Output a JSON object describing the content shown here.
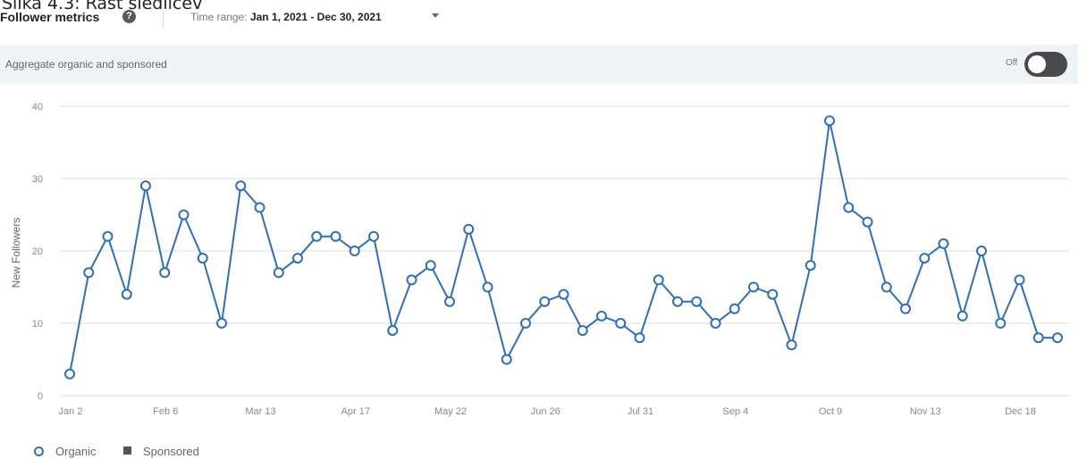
{
  "caption": "Slika 4.3: Rast sledilcev",
  "header": {
    "title": "Follower metrics",
    "time_range_label": "Time range:",
    "time_range_value": "Jan 1, 2021 - Dec 30, 2021"
  },
  "aggregate": {
    "label": "Aggregate organic and sponsored",
    "toggle_state": "Off"
  },
  "colors": {
    "series": "#2e6fbd",
    "grid": "#dddddd",
    "band": "#eef3f8",
    "toggle": "#4a4a4a"
  },
  "icons": {
    "help": "question-circle-icon",
    "dropdown": "chevron-down-icon"
  },
  "legend": [
    {
      "label": "Organic",
      "marker": "circle"
    },
    {
      "label": "Sponsored",
      "marker": "square"
    }
  ],
  "chart_data": {
    "type": "line",
    "ylabel": "New Followers",
    "ylim": [
      0,
      40
    ],
    "yticks": [
      0,
      10,
      20,
      30,
      40
    ],
    "xticks": [
      "Jan 2",
      "Feb 6",
      "Mar 13",
      "Apr 17",
      "May 22",
      "Jun 26",
      "Jul 31",
      "Sep 4",
      "Oct 9",
      "Nov 13",
      "Dec 18"
    ],
    "grid": true,
    "legend_position": "bottom-left",
    "series": [
      {
        "name": "Organic",
        "values": [
          3,
          17,
          22,
          14,
          29,
          17,
          25,
          19,
          10,
          29,
          26,
          17,
          19,
          22,
          22,
          20,
          22,
          9,
          16,
          18,
          13,
          23,
          15,
          5,
          10,
          13,
          14,
          9,
          11,
          10,
          8,
          16,
          13,
          13,
          10,
          12,
          15,
          14,
          7,
          18,
          38,
          26,
          24,
          15,
          12,
          19,
          21,
          11,
          20,
          10,
          16,
          8,
          8
        ]
      },
      {
        "name": "Sponsored",
        "values": []
      }
    ]
  }
}
